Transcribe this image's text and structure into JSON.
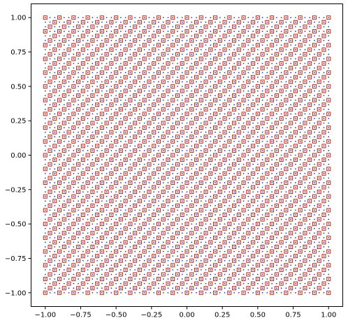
{
  "chart_data": {
    "type": "scatter",
    "title": "",
    "xlabel": "",
    "ylabel": "",
    "xlim": [
      -1.1,
      1.1
    ],
    "ylim": [
      -1.1,
      1.1
    ],
    "grid": false,
    "legend": "none",
    "x_ticks": [
      -1.0,
      -0.75,
      -0.5,
      -0.25,
      0.0,
      0.25,
      0.5,
      0.75,
      1.0
    ],
    "x_tick_labels": [
      "−1.00",
      "−0.75",
      "−0.50",
      "−0.25",
      "0.00",
      "0.25",
      "0.50",
      "0.75",
      "1.00"
    ],
    "y_ticks": [
      -1.0,
      -0.75,
      -0.5,
      -0.25,
      0.0,
      0.25,
      0.5,
      0.75,
      1.0
    ],
    "y_tick_labels": [
      "−1.00",
      "−0.75",
      "−0.50",
      "−0.25",
      "0.00",
      "0.25",
      "0.50",
      "0.75",
      "1.00"
    ],
    "grid_points": {
      "x_min": -1.0,
      "x_max": 1.0,
      "x_count": 61,
      "y_min": -1.0,
      "y_max": 1.0,
      "y_count": 61
    },
    "series": [
      {
        "marker": "dot",
        "color": "#1f3fd0",
        "description_of_points": "every point of the 61x61 grid"
      },
      {
        "marker": "open-square",
        "color": "#cc2200",
        "description_of_points": "subset of grid points drawn in a repeating diagonal pattern (about 1 in 3 grid nodes)"
      }
    ]
  }
}
